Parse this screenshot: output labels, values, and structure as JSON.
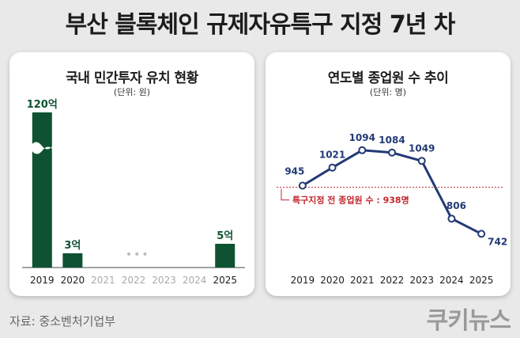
{
  "headline": "부산 블록체인 규제자유특구 지정 7년 차",
  "source": "자료: 중소벤처기업부",
  "brand": "쿠키뉴스",
  "colors": {
    "bar": "#0e5232",
    "line": "#233a75",
    "reference": "#c0262d",
    "muted_tick": "#aaaaaa"
  },
  "chart_data": [
    {
      "type": "bar",
      "title": "국내 민간투자 유치 현황",
      "unit": "(단위: 원)",
      "categories": [
        "2019",
        "2020",
        "2021",
        "2022",
        "2023",
        "2024",
        "2025"
      ],
      "values": [
        12000000000,
        300000000,
        null,
        null,
        null,
        null,
        500000000
      ],
      "value_labels": [
        "120억",
        "3억",
        "",
        "",
        "",
        "",
        "5억"
      ],
      "missing_marker": "•••",
      "axis_break": true
    },
    {
      "type": "line",
      "title": "연도별 종업원 수 추이",
      "unit": "(단위: 명)",
      "categories": [
        "2019",
        "2020",
        "2021",
        "2022",
        "2023",
        "2024",
        "2025"
      ],
      "values": [
        945,
        1021,
        1094,
        1084,
        1049,
        806,
        742
      ],
      "reference_line": {
        "value": 938,
        "label": "특구지정 전 종업원 수 : 938명"
      }
    }
  ]
}
